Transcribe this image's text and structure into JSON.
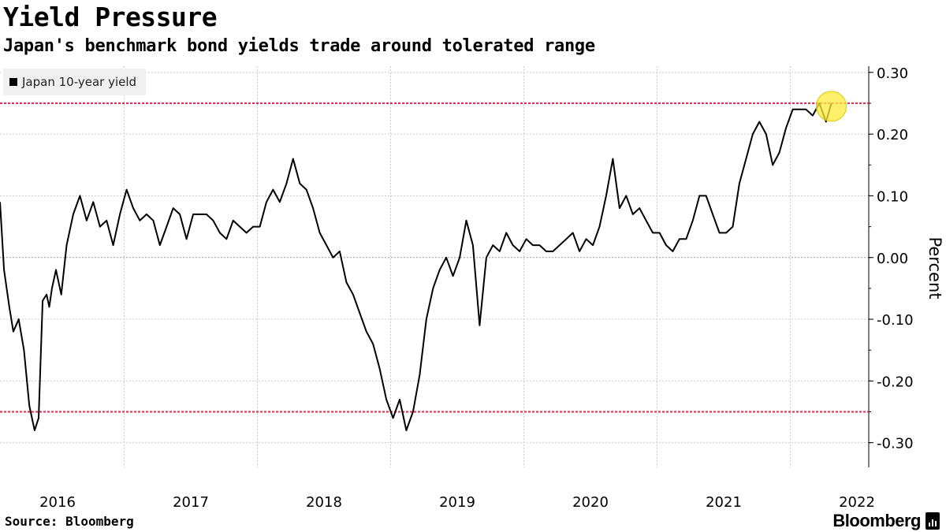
{
  "header": {
    "title": "Yield Pressure",
    "subtitle": "Japan's benchmark bond yields trade around tolerated range"
  },
  "footer": {
    "source": "Source: Bloomberg",
    "brand": "Bloomberg"
  },
  "colors": {
    "line": "#000000",
    "band": "#e8274b",
    "highlight": "#ffeb3b",
    "grid": "#cccccc",
    "legend_bg": "#f0f0f0"
  },
  "chart_data": {
    "type": "line",
    "title": "Yield Pressure",
    "subtitle": "Japan's benchmark bond yields trade around tolerated range",
    "ylabel": "Percent",
    "xlabel": "",
    "ylim": [
      -0.34,
      0.31
    ],
    "xlim": [
      2016.0,
      2022.55
    ],
    "y_ticks": [
      0.3,
      0.2,
      0.1,
      0.0,
      -0.1,
      -0.2,
      -0.3
    ],
    "y_tick_labels": [
      "0.30",
      "0.20",
      "0.10",
      "0.00",
      "-0.10",
      "-0.20",
      "-0.30"
    ],
    "x_tick_labels": [
      "2016",
      "2017",
      "2018",
      "2019",
      "2020",
      "2021",
      "2022"
    ],
    "x_tick_positions": [
      2016.0,
      2017.0,
      2018.0,
      2019.0,
      2020.0,
      2021.0,
      2022.0
    ],
    "reference_lines": [
      0.25,
      -0.25
    ],
    "zero_line": 0.0,
    "grid": true,
    "legend_position": "top-left",
    "highlight_point": {
      "x": 2022.24,
      "y": 0.245
    },
    "series": [
      {
        "name": "Japan 10-year yield",
        "x": [
          2016.0,
          2016.03,
          2016.07,
          2016.1,
          2016.14,
          2016.18,
          2016.22,
          2016.26,
          2016.29,
          2016.32,
          2016.35,
          2016.37,
          2016.39,
          2016.42,
          2016.46,
          2016.5,
          2016.55,
          2016.6,
          2016.65,
          2016.7,
          2016.75,
          2016.8,
          2016.85,
          2016.9,
          2016.95,
          2017.0,
          2017.05,
          2017.1,
          2017.15,
          2017.2,
          2017.25,
          2017.3,
          2017.35,
          2017.4,
          2017.45,
          2017.5,
          2017.55,
          2017.6,
          2017.65,
          2017.7,
          2017.75,
          2017.8,
          2017.85,
          2017.9,
          2017.95,
          2018.0,
          2018.05,
          2018.1,
          2018.15,
          2018.2,
          2018.25,
          2018.3,
          2018.35,
          2018.4,
          2018.45,
          2018.5,
          2018.55,
          2018.6,
          2018.65,
          2018.7,
          2018.75,
          2018.8,
          2018.85,
          2018.9,
          2018.95,
          2019.0,
          2019.05,
          2019.1,
          2019.15,
          2019.2,
          2019.25,
          2019.3,
          2019.35,
          2019.4,
          2019.45,
          2019.5,
          2019.55,
          2019.6,
          2019.65,
          2019.7,
          2019.75,
          2019.8,
          2019.85,
          2019.9,
          2019.95,
          2020.0,
          2020.05,
          2020.1,
          2020.15,
          2020.2,
          2020.25,
          2020.3,
          2020.35,
          2020.4,
          2020.45,
          2020.5,
          2020.55,
          2020.6,
          2020.65,
          2020.7,
          2020.75,
          2020.8,
          2020.85,
          2020.9,
          2020.95,
          2021.0,
          2021.05,
          2021.1,
          2021.15,
          2021.2,
          2021.25,
          2021.3,
          2021.35,
          2021.4,
          2021.45,
          2021.5,
          2021.55,
          2021.6,
          2021.65,
          2021.7,
          2021.75,
          2021.8,
          2021.85,
          2021.9,
          2021.95,
          2022.0,
          2022.05,
          2022.1,
          2022.15,
          2022.2,
          2022.24
        ],
        "y": [
          0.09,
          -0.02,
          -0.08,
          -0.12,
          -0.1,
          -0.15,
          -0.24,
          -0.28,
          -0.26,
          -0.07,
          -0.06,
          -0.08,
          -0.05,
          -0.02,
          -0.06,
          0.02,
          0.07,
          0.1,
          0.06,
          0.09,
          0.05,
          0.06,
          0.02,
          0.07,
          0.11,
          0.08,
          0.06,
          0.07,
          0.06,
          0.02,
          0.05,
          0.08,
          0.07,
          0.03,
          0.07,
          0.07,
          0.07,
          0.06,
          0.04,
          0.03,
          0.06,
          0.05,
          0.04,
          0.05,
          0.05,
          0.09,
          0.11,
          0.09,
          0.12,
          0.16,
          0.12,
          0.11,
          0.08,
          0.04,
          0.02,
          0.0,
          0.01,
          -0.04,
          -0.06,
          -0.09,
          -0.12,
          -0.14,
          -0.18,
          -0.23,
          -0.26,
          -0.23,
          -0.28,
          -0.25,
          -0.19,
          -0.1,
          -0.05,
          -0.02,
          0.0,
          -0.03,
          0.0,
          0.06,
          0.02,
          -0.11,
          0.0,
          0.02,
          0.01,
          0.04,
          0.02,
          0.01,
          0.03,
          0.02,
          0.02,
          0.01,
          0.01,
          0.02,
          0.03,
          0.04,
          0.01,
          0.03,
          0.02,
          0.05,
          0.1,
          0.16,
          0.08,
          0.1,
          0.07,
          0.08,
          0.06,
          0.04,
          0.04,
          0.02,
          0.01,
          0.03,
          0.03,
          0.06,
          0.1,
          0.1,
          0.07,
          0.04,
          0.04,
          0.05,
          0.12,
          0.16,
          0.2,
          0.22,
          0.2,
          0.15,
          0.17,
          0.21,
          0.24,
          0.24,
          0.24,
          0.23,
          0.25,
          0.22,
          0.25
        ]
      }
    ]
  }
}
